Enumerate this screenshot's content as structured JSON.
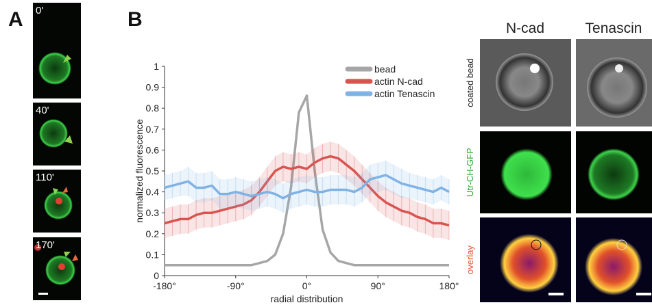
{
  "panel_labels": [
    "A",
    "B"
  ],
  "panel_a": {
    "timepoints": [
      "0'",
      "40'",
      "110'",
      "170'"
    ]
  },
  "chart_data": {
    "type": "line",
    "ylabel": "normalized fluorescence",
    "xlabel": "radial distribution",
    "x": [
      -180,
      -170,
      -160,
      -150,
      -140,
      -130,
      -120,
      -110,
      -100,
      -90,
      -80,
      -70,
      -60,
      -50,
      -40,
      -30,
      -20,
      -10,
      0,
      10,
      20,
      30,
      40,
      50,
      60,
      70,
      80,
      90,
      100,
      110,
      120,
      130,
      140,
      150,
      160,
      170,
      180
    ],
    "series": [
      {
        "name": "bead",
        "color": "#a6a6a6",
        "values": [
          0.05,
          0.05,
          0.05,
          0.05,
          0.05,
          0.05,
          0.05,
          0.05,
          0.05,
          0.05,
          0.05,
          0.05,
          0.06,
          0.07,
          0.1,
          0.2,
          0.42,
          0.78,
          0.86,
          0.5,
          0.22,
          0.11,
          0.07,
          0.06,
          0.05,
          0.05,
          0.05,
          0.05,
          0.05,
          0.05,
          0.05,
          0.05,
          0.05,
          0.05,
          0.05,
          0.05,
          0.05
        ]
      },
      {
        "name": "actin N-cad",
        "color": "#d9534f",
        "values": [
          0.25,
          0.26,
          0.27,
          0.27,
          0.29,
          0.3,
          0.3,
          0.31,
          0.32,
          0.33,
          0.34,
          0.36,
          0.4,
          0.45,
          0.5,
          0.52,
          0.51,
          0.52,
          0.51,
          0.54,
          0.56,
          0.57,
          0.56,
          0.53,
          0.5,
          0.46,
          0.42,
          0.38,
          0.35,
          0.33,
          0.31,
          0.3,
          0.28,
          0.27,
          0.25,
          0.25,
          0.24
        ],
        "errors": [
          0.07,
          0.07,
          0.07,
          0.07,
          0.07,
          0.07,
          0.07,
          0.07,
          0.07,
          0.07,
          0.07,
          0.07,
          0.07,
          0.07,
          0.07,
          0.07,
          0.07,
          0.07,
          0.07,
          0.07,
          0.07,
          0.07,
          0.07,
          0.07,
          0.07,
          0.07,
          0.07,
          0.07,
          0.07,
          0.07,
          0.07,
          0.07,
          0.07,
          0.07,
          0.07,
          0.07,
          0.07
        ]
      },
      {
        "name": "actin Tenascin",
        "color": "#7fb2e5",
        "values": [
          0.42,
          0.43,
          0.44,
          0.45,
          0.42,
          0.42,
          0.43,
          0.39,
          0.39,
          0.4,
          0.39,
          0.38,
          0.39,
          0.4,
          0.39,
          0.37,
          0.39,
          0.4,
          0.41,
          0.4,
          0.4,
          0.41,
          0.41,
          0.41,
          0.4,
          0.42,
          0.46,
          0.47,
          0.48,
          0.46,
          0.44,
          0.43,
          0.42,
          0.41,
          0.4,
          0.42,
          0.4
        ],
        "errors": [
          0.06,
          0.06,
          0.06,
          0.07,
          0.07,
          0.07,
          0.07,
          0.07,
          0.07,
          0.07,
          0.07,
          0.07,
          0.07,
          0.07,
          0.07,
          0.07,
          0.07,
          0.07,
          0.07,
          0.07,
          0.07,
          0.07,
          0.07,
          0.07,
          0.07,
          0.07,
          0.07,
          0.07,
          0.07,
          0.07,
          0.07,
          0.06,
          0.06,
          0.06,
          0.06,
          0.06,
          0.06
        ]
      }
    ],
    "xlim": [
      -180,
      180
    ],
    "xticks": [
      {
        "value": -180,
        "label": "-180°"
      },
      {
        "value": -90,
        "label": "-90°"
      },
      {
        "value": 0,
        "label": "0°"
      },
      {
        "value": 90,
        "label": "90°"
      },
      {
        "value": 180,
        "label": "180°"
      }
    ],
    "ylim": [
      0,
      1
    ],
    "yticks": [
      0,
      0.1,
      0.2,
      0.3,
      0.4,
      0.5,
      0.6,
      0.7,
      0.8,
      0.9,
      1
    ],
    "grid": false
  },
  "panel_c": {
    "columns": [
      "N-cad",
      "Tenascin"
    ],
    "rows": [
      "coated bead",
      "Utr-CH-GFP",
      "overlay"
    ]
  }
}
